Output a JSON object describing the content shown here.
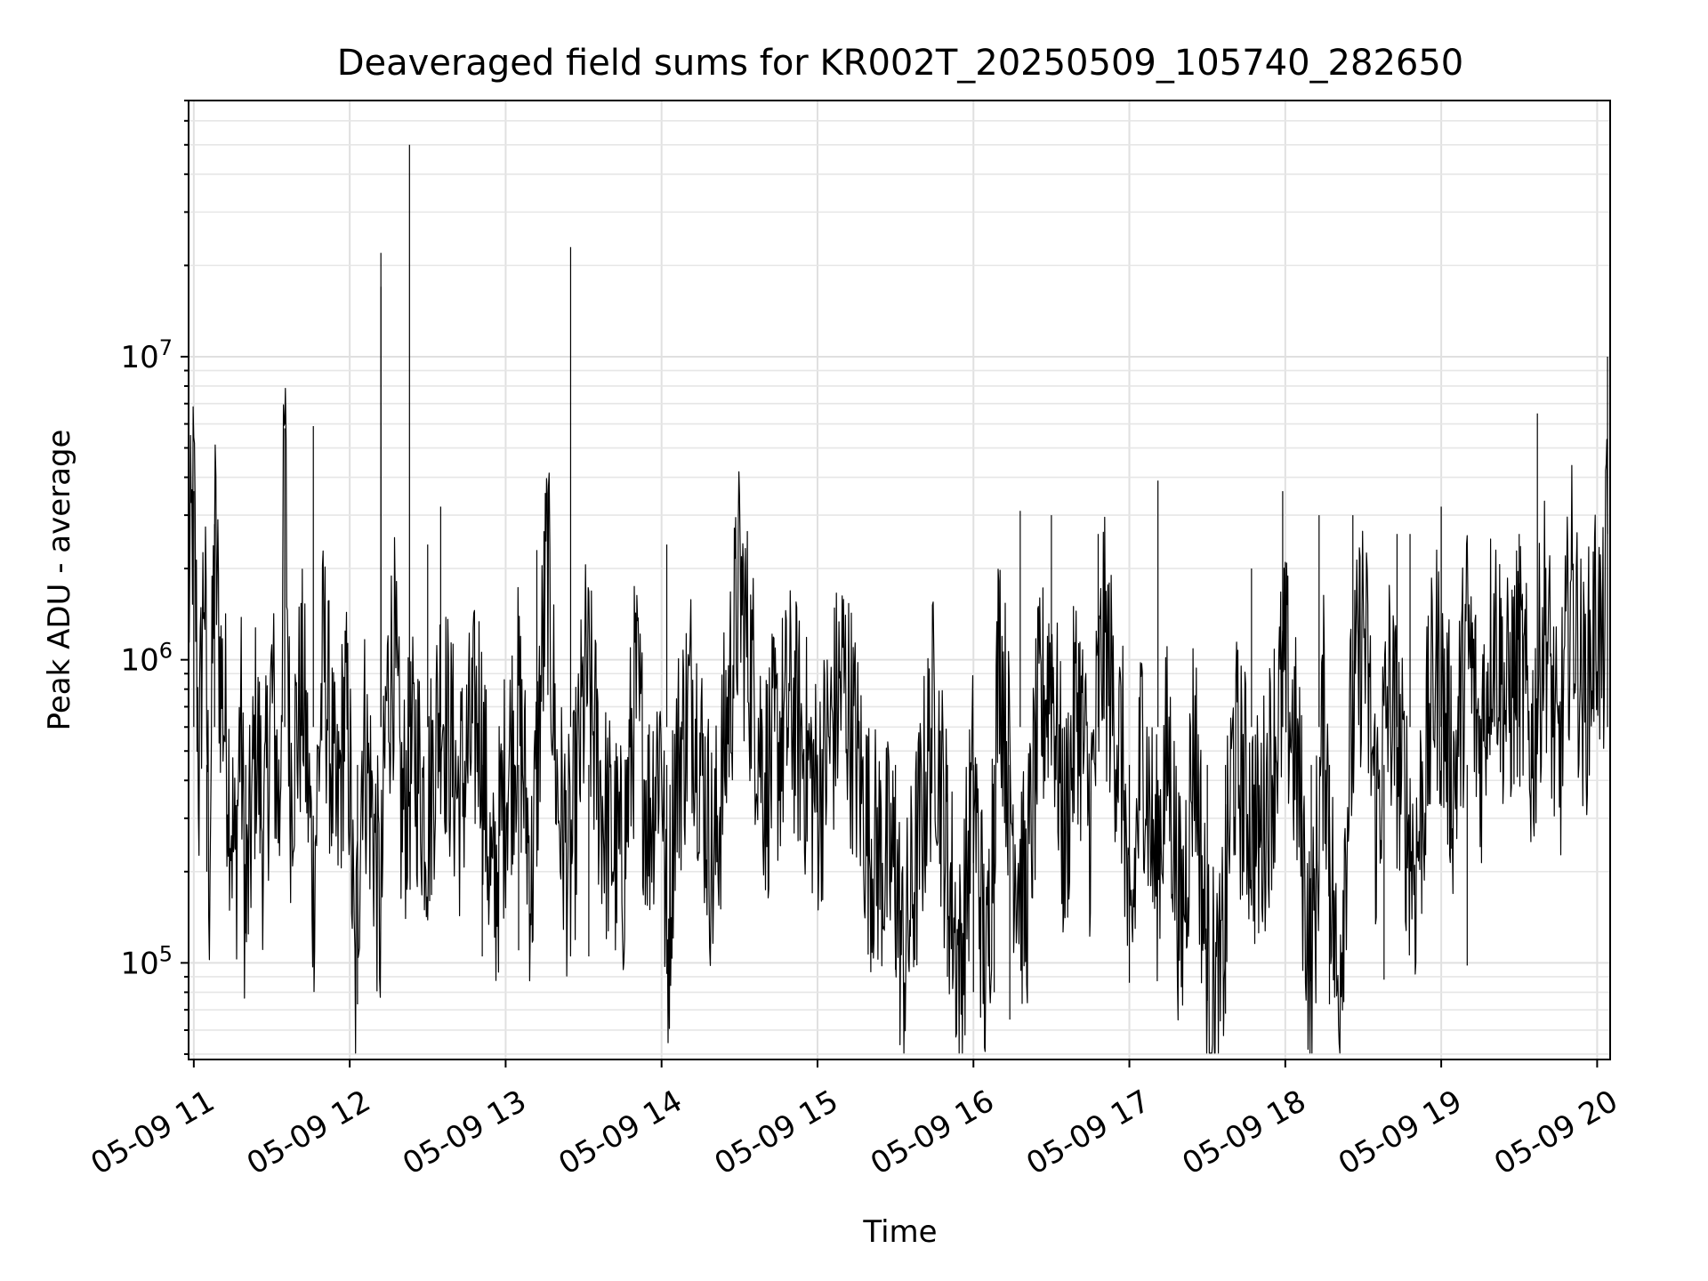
{
  "chart_data": {
    "type": "line",
    "title": "Deaveraged field sums for KR002T_20250509_105740_282650",
    "xlabel": "Time",
    "ylabel": "Peak ADU - average",
    "yscale": "log",
    "grid": true,
    "ylim": [
      48000,
      70000000
    ],
    "xlim": [
      "2025-05-09 10:58",
      "2025-05-09 20:05"
    ],
    "x_ticks": [
      {
        "value": "2025-05-09 11:00",
        "label": "05-09 11"
      },
      {
        "value": "2025-05-09 12:00",
        "label": "05-09 12"
      },
      {
        "value": "2025-05-09 13:00",
        "label": "05-09 13"
      },
      {
        "value": "2025-05-09 14:00",
        "label": "05-09 14"
      },
      {
        "value": "2025-05-09 15:00",
        "label": "05-09 15"
      },
      {
        "value": "2025-05-09 16:00",
        "label": "05-09 16"
      },
      {
        "value": "2025-05-09 17:00",
        "label": "05-09 17"
      },
      {
        "value": "2025-05-09 18:00",
        "label": "05-09 18"
      },
      {
        "value": "2025-05-09 19:00",
        "label": "05-09 19"
      },
      {
        "value": "2025-05-09 20:00",
        "label": "05-09 20"
      }
    ],
    "y_ticks": [
      {
        "value": 100000,
        "label": "10^5",
        "base": "10",
        "exp": "5"
      },
      {
        "value": 1000000,
        "label": "10^6",
        "base": "10",
        "exp": "6"
      },
      {
        "value": 10000000,
        "label": "10^7",
        "base": "10",
        "exp": "7"
      }
    ],
    "series": [
      {
        "color": "#000000",
        "points": [
          [
            "2025-05-09 10:58",
            1500000
          ],
          [
            "2025-05-09 11:00",
            3600000
          ],
          [
            "2025-05-09 11:02",
            400000
          ],
          [
            "2025-05-09 11:04",
            2200000
          ],
          [
            "2025-05-09 11:06",
            200000
          ],
          [
            "2025-05-09 11:08",
            2800000
          ],
          [
            "2025-05-09 11:10",
            1000000
          ],
          [
            "2025-05-09 11:13",
            500000
          ],
          [
            "2025-05-09 11:16",
            190000
          ],
          [
            "2025-05-09 11:18",
            700000
          ],
          [
            "2025-05-09 11:20",
            130000
          ],
          [
            "2025-05-09 11:24",
            600000
          ],
          [
            "2025-05-09 11:27",
            250000
          ],
          [
            "2025-05-09 11:30",
            800000
          ],
          [
            "2025-05-09 11:33",
            300000
          ],
          [
            "2025-05-09 11:35",
            5800000
          ],
          [
            "2025-05-09 11:37",
            400000
          ],
          [
            "2025-05-09 11:42",
            800000
          ],
          [
            "2025-05-09 11:46",
            180000
          ],
          [
            "2025-05-09 11:50",
            1100000
          ],
          [
            "2025-05-09 11:55",
            260000
          ],
          [
            "2025-05-09 11:58",
            700000
          ],
          [
            "2025-05-09 12:00",
            450000
          ],
          [
            "2025-05-09 12:02",
            75000
          ],
          [
            "2025-05-09 12:05",
            600000
          ],
          [
            "2025-05-09 12:09",
            300000
          ],
          [
            "2025-05-09 12:12",
            130000
          ],
          [
            "2025-05-09 12:14",
            700000
          ],
          [
            "2025-05-09 12:17",
            1100000
          ],
          [
            "2025-05-09 12:20",
            300000
          ],
          [
            "2025-05-09 12:25",
            500000
          ],
          [
            "2025-05-09 12:30",
            300000
          ],
          [
            "2025-05-09 12:35",
            800000
          ],
          [
            "2025-05-09 12:42",
            350000
          ],
          [
            "2025-05-09 12:50",
            700000
          ],
          [
            "2025-05-09 12:55",
            150000
          ],
          [
            "2025-05-09 13:00",
            400000
          ],
          [
            "2025-05-09 13:05",
            700000
          ],
          [
            "2025-05-09 13:10",
            180000
          ],
          [
            "2025-05-09 13:16",
            2200000
          ],
          [
            "2025-05-09 13:20",
            350000
          ],
          [
            "2025-05-09 13:25",
            200000
          ],
          [
            "2025-05-09 13:31",
            900000
          ],
          [
            "2025-05-09 13:38",
            300000
          ],
          [
            "2025-05-09 13:45",
            200000
          ],
          [
            "2025-05-09 13:50",
            800000
          ],
          [
            "2025-05-09 13:55",
            300000
          ],
          [
            "2025-05-09 14:00",
            600000
          ],
          [
            "2025-05-09 14:02",
            93000
          ],
          [
            "2025-05-09 14:05",
            400000
          ],
          [
            "2025-05-09 14:12",
            800000
          ],
          [
            "2025-05-09 14:20",
            200000
          ],
          [
            "2025-05-09 14:30",
            1800000
          ],
          [
            "2025-05-09 14:40",
            400000
          ],
          [
            "2025-05-09 14:50",
            700000
          ],
          [
            "2025-05-09 15:00",
            350000
          ],
          [
            "2025-05-09 15:10",
            900000
          ],
          [
            "2025-05-09 15:20",
            250000
          ],
          [
            "2025-05-09 15:30",
            200000
          ],
          [
            "2025-05-09 15:33",
            95000
          ],
          [
            "2025-05-09 15:40",
            300000
          ],
          [
            "2025-05-09 15:45",
            700000
          ],
          [
            "2025-05-09 15:50",
            220000
          ],
          [
            "2025-05-09 15:55",
            90000
          ],
          [
            "2025-05-09 16:00",
            400000
          ],
          [
            "2025-05-09 16:05",
            80000
          ],
          [
            "2025-05-09 16:10",
            1200000
          ],
          [
            "2025-05-09 16:15",
            300000
          ],
          [
            "2025-05-09 16:20",
            150000
          ],
          [
            "2025-05-09 16:25",
            600000
          ],
          [
            "2025-05-09 16:30",
            1000000
          ],
          [
            "2025-05-09 16:35",
            250000
          ],
          [
            "2025-05-09 16:40",
            800000
          ],
          [
            "2025-05-09 16:45",
            300000
          ],
          [
            "2025-05-09 16:50",
            1200000
          ],
          [
            "2025-05-09 16:58",
            400000
          ],
          [
            "2025-05-09 17:00",
            86000
          ],
          [
            "2025-05-09 17:05",
            600000
          ],
          [
            "2025-05-09 17:10",
            200000
          ],
          [
            "2025-05-09 17:15",
            500000
          ],
          [
            "2025-05-09 17:20",
            120000
          ],
          [
            "2025-05-09 17:25",
            600000
          ],
          [
            "2025-05-09 17:30",
            90000
          ],
          [
            "2025-05-09 17:35",
            75000
          ],
          [
            "2025-05-09 17:40",
            500000
          ],
          [
            "2025-05-09 17:50",
            250000
          ],
          [
            "2025-05-09 18:00",
            900000
          ],
          [
            "2025-05-09 18:05",
            400000
          ],
          [
            "2025-05-09 18:10",
            87000
          ],
          [
            "2025-05-09 18:15",
            700000
          ],
          [
            "2025-05-09 18:20",
            75000
          ],
          [
            "2025-05-09 18:25",
            500000
          ],
          [
            "2025-05-09 18:30",
            1400000
          ],
          [
            "2025-05-09 18:35",
            300000
          ],
          [
            "2025-05-09 18:40",
            800000
          ],
          [
            "2025-05-09 18:50",
            200000
          ],
          [
            "2025-05-09 18:58",
            1000000
          ],
          [
            "2025-05-09 19:05",
            400000
          ],
          [
            "2025-05-09 19:10",
            1200000
          ],
          [
            "2025-05-09 19:15",
            500000
          ],
          [
            "2025-05-09 19:20",
            1400000
          ],
          [
            "2025-05-09 19:25",
            700000
          ],
          [
            "2025-05-09 19:30",
            1000000
          ],
          [
            "2025-05-09 19:35",
            500000
          ],
          [
            "2025-05-09 19:40",
            1500000
          ],
          [
            "2025-05-09 19:45",
            400000
          ],
          [
            "2025-05-09 19:50",
            1800000
          ],
          [
            "2025-05-09 19:55",
            700000
          ],
          [
            "2025-05-09 20:00",
            1500000
          ],
          [
            "2025-05-09 20:02",
            900000
          ],
          [
            "2025-05-09 20:04",
            2600000
          ]
        ]
      }
    ],
    "spikes": [
      {
        "x": "2025-05-09 11:00",
        "y": 3600000
      },
      {
        "x": "2025-05-09 11:08",
        "y": 2800000
      },
      {
        "x": "2025-05-09 11:35",
        "y": 5800000
      },
      {
        "x": "2025-05-09 11:46",
        "y": 5900000
      },
      {
        "x": "2025-05-09 12:12",
        "y": 22000000
      },
      {
        "x": "2025-05-09 12:12",
        "y": 17000000
      },
      {
        "x": "2025-05-09 12:23",
        "y": 50000000
      },
      {
        "x": "2025-05-09 12:30",
        "y": 2400000
      },
      {
        "x": "2025-05-09 12:35",
        "y": 3200000
      },
      {
        "x": "2025-05-09 13:12",
        "y": 2300000
      },
      {
        "x": "2025-05-09 13:25",
        "y": 23000000
      },
      {
        "x": "2025-05-09 14:02",
        "y": 2400000
      },
      {
        "x": "2025-05-09 16:18",
        "y": 3100000
      },
      {
        "x": "2025-05-09 16:30",
        "y": 3000000
      },
      {
        "x": "2025-05-09 16:48",
        "y": 2600000
      },
      {
        "x": "2025-05-09 17:11",
        "y": 3900000
      },
      {
        "x": "2025-05-09 17:47",
        "y": 2000000
      },
      {
        "x": "2025-05-09 17:59",
        "y": 3600000
      },
      {
        "x": "2025-05-09 18:13",
        "y": 3000000
      },
      {
        "x": "2025-05-09 18:26",
        "y": 3000000
      },
      {
        "x": "2025-05-09 18:43",
        "y": 2600000
      },
      {
        "x": "2025-05-09 18:48",
        "y": 2600000
      },
      {
        "x": "2025-05-09 19:00",
        "y": 3200000
      },
      {
        "x": "2025-05-09 19:30",
        "y": 2600000
      },
      {
        "x": "2025-05-09 19:37",
        "y": 6500000
      },
      {
        "x": "2025-05-09 20:04",
        "y": 10000000
      }
    ],
    "dips": [
      {
        "x": "2025-05-09 11:05",
        "y": 200000
      },
      {
        "x": "2025-05-09 11:20",
        "y": 125000
      },
      {
        "x": "2025-05-09 12:03",
        "y": 73000
      },
      {
        "x": "2025-05-09 12:51",
        "y": 105000
      },
      {
        "x": "2025-05-09 13:05",
        "y": 110000
      },
      {
        "x": "2025-05-09 13:32",
        "y": 105000
      },
      {
        "x": "2025-05-09 14:02",
        "y": 92000
      },
      {
        "x": "2025-05-09 15:30",
        "y": 95000
      },
      {
        "x": "2025-05-09 15:50",
        "y": 90000
      },
      {
        "x": "2025-05-09 16:00",
        "y": 80000
      },
      {
        "x": "2025-05-09 16:08",
        "y": 80000
      },
      {
        "x": "2025-05-09 16:14",
        "y": 65000
      },
      {
        "x": "2025-05-09 17:00",
        "y": 86000
      },
      {
        "x": "2025-05-09 17:30",
        "y": 75000
      },
      {
        "x": "2025-05-09 17:37",
        "y": 68000
      },
      {
        "x": "2025-05-09 18:10",
        "y": 87000
      },
      {
        "x": "2025-05-09 18:17",
        "y": 73000
      },
      {
        "x": "2025-05-09 18:38",
        "y": 88000
      },
      {
        "x": "2025-05-09 19:10",
        "y": 98000
      }
    ]
  }
}
